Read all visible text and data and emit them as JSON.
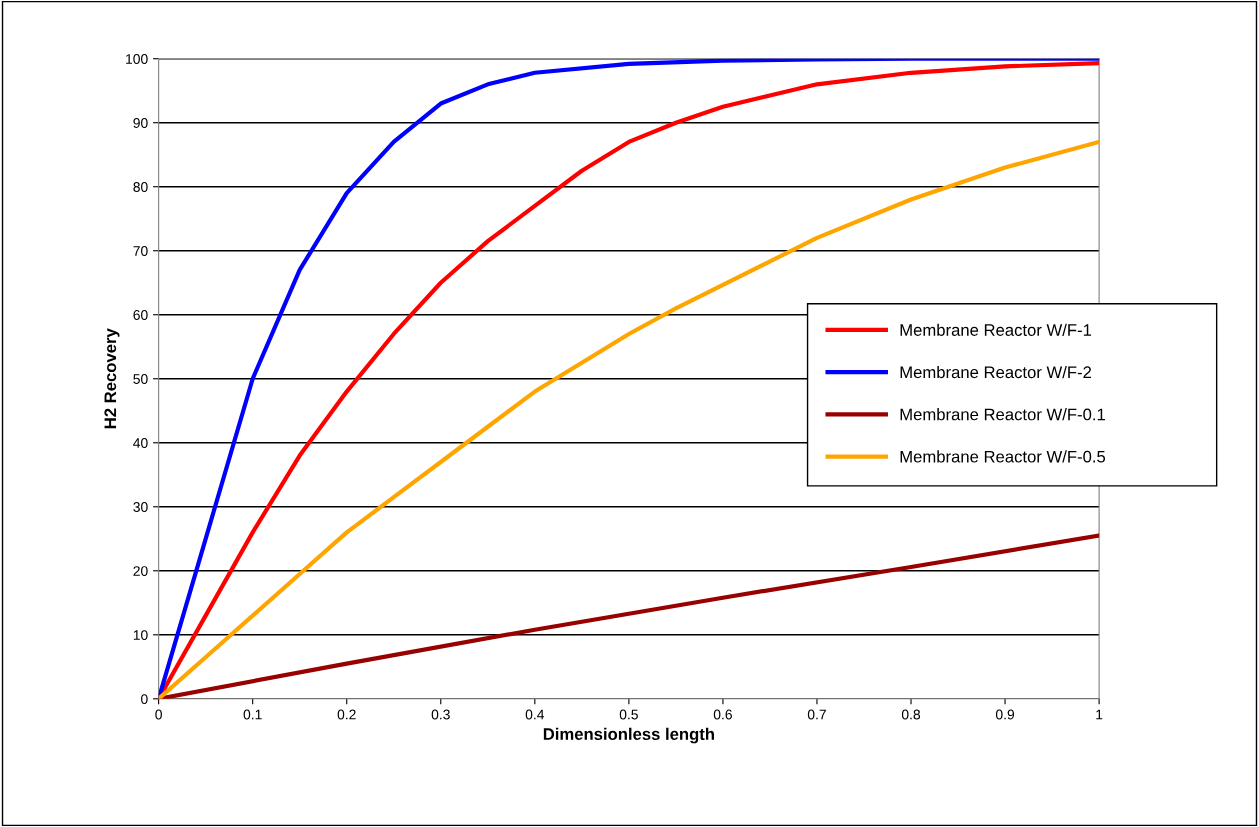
{
  "chart_data": {
    "type": "line",
    "xlabel": "Dimensionless length",
    "ylabel": "H2 Recovery",
    "xlim": [
      0,
      1
    ],
    "ylim": [
      0,
      100
    ],
    "xticks": [
      0,
      0.1,
      0.2,
      0.3,
      0.4,
      0.5,
      0.6,
      0.7,
      0.8,
      0.9,
      1
    ],
    "yticks": [
      0,
      10,
      20,
      30,
      40,
      50,
      60,
      70,
      80,
      90,
      100
    ],
    "grid": "y",
    "legend": "right",
    "marker": "none",
    "line_style": "solid",
    "series": [
      {
        "name": "Membrane Reactor W/F-1",
        "color": "#ff0000",
        "x": [
          0,
          0.05,
          0.1,
          0.15,
          0.2,
          0.25,
          0.3,
          0.35,
          0.4,
          0.45,
          0.5,
          0.55,
          0.6,
          0.7,
          0.8,
          0.9,
          1
        ],
        "values": [
          0,
          13,
          26,
          38,
          48,
          57,
          65,
          71.5,
          77,
          82.5,
          87,
          90,
          92.5,
          96,
          97.8,
          98.8,
          99.3
        ]
      },
      {
        "name": "Membrane Reactor W/F-2",
        "color": "#0000ff",
        "x": [
          0,
          0.05,
          0.1,
          0.15,
          0.2,
          0.25,
          0.3,
          0.35,
          0.4,
          0.5,
          0.6,
          0.7,
          0.8,
          1
        ],
        "values": [
          0,
          25,
          50,
          67,
          79,
          87,
          93,
          96,
          97.8,
          99.2,
          99.7,
          99.9,
          100,
          100
        ]
      },
      {
        "name": "Membrane Reactor W/F-0.1",
        "color": "#990000",
        "x": [
          0,
          0.2,
          0.4,
          0.6,
          0.8,
          1
        ],
        "values": [
          0,
          5.5,
          10.8,
          15.8,
          20.6,
          25.5
        ]
      },
      {
        "name": "Membrane Reactor W/F-0.5",
        "color": "#ffa500",
        "x": [
          0,
          0.05,
          0.1,
          0.15,
          0.2,
          0.25,
          0.3,
          0.35,
          0.4,
          0.45,
          0.5,
          0.55,
          0.7,
          0.8,
          0.9,
          1
        ],
        "values": [
          0,
          6.5,
          13,
          19.5,
          26,
          31.5,
          37,
          42.5,
          48,
          52.5,
          57,
          61,
          72,
          78,
          83,
          87
        ]
      }
    ]
  }
}
